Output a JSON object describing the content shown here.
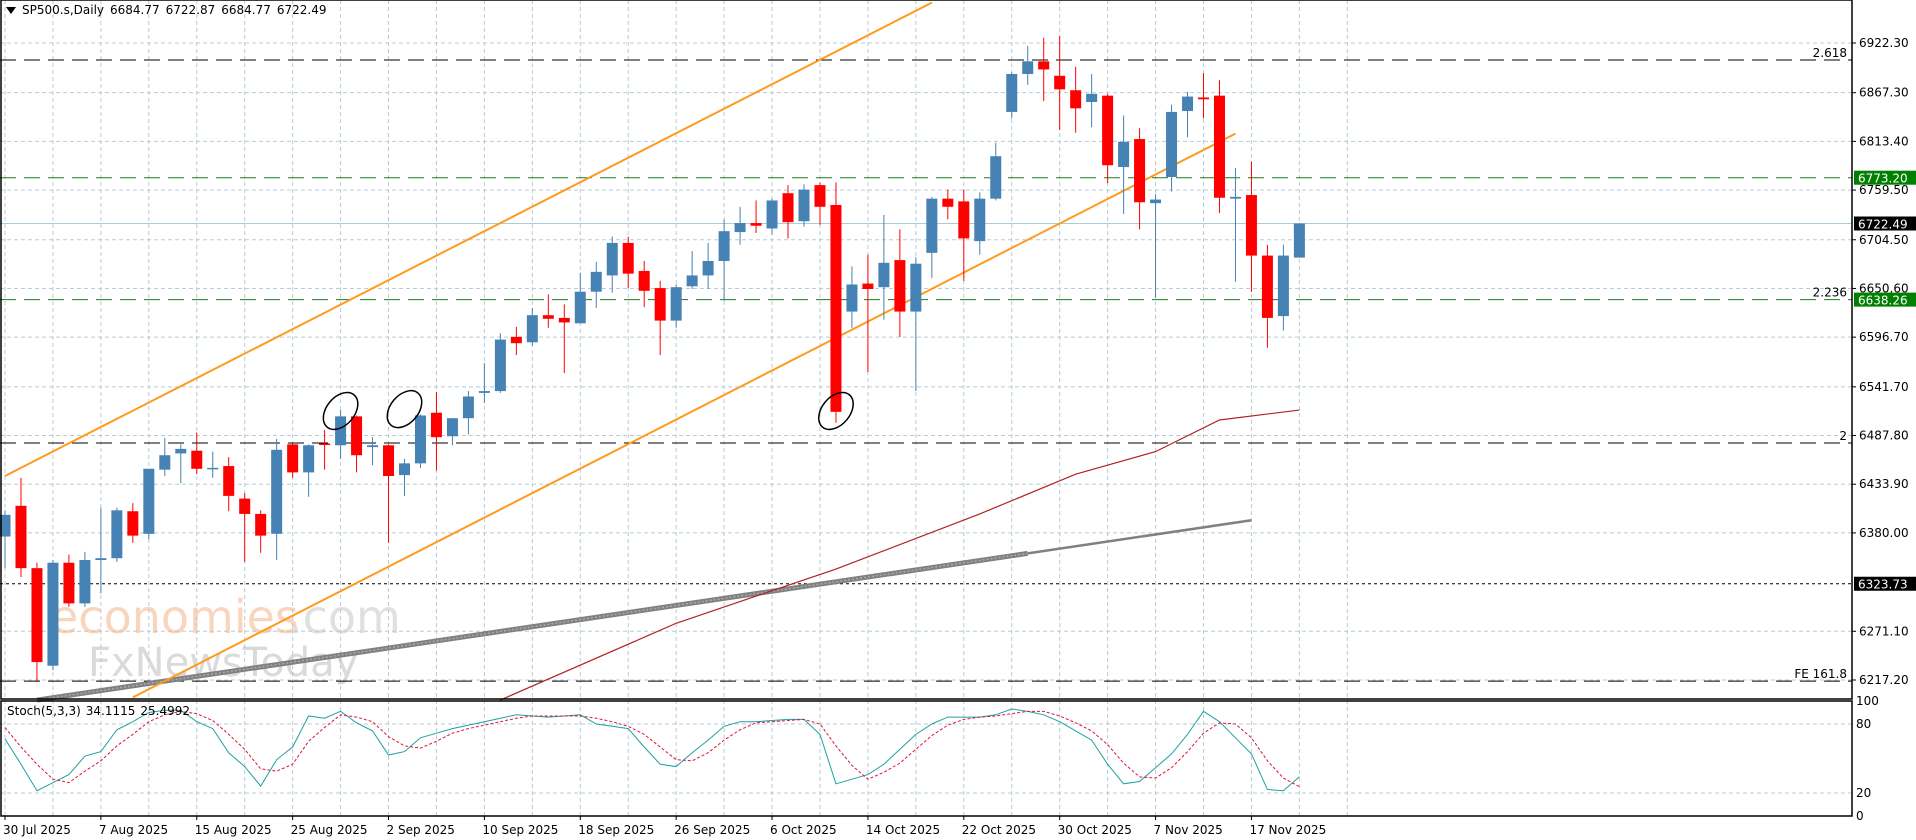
{
  "header": {
    "symbol": "SP500.s,Daily",
    "open": "6684.77",
    "high": "6722.87",
    "low": "6684.77",
    "close": "6722.49"
  },
  "stoch_label": {
    "name": "Stoch(5,3,3)",
    "k": "34.1115",
    "d": "25.4992"
  },
  "watermark": {
    "part1": "economies",
    "part2": ".com",
    "part3": "FxNewsToday"
  },
  "colors": {
    "bull": "#4682B4",
    "bear": "#FF0000",
    "grid": "#b8ccd6",
    "channel": "#FF9A1F",
    "trendline": "#808080",
    "ma": "#B22222",
    "level_green": "#1E7B1E",
    "label_green": "#008000",
    "stoch_k": "#20A0A0",
    "stoch_d": "#DC143C"
  },
  "chart_data": [
    {
      "type": "candlestick",
      "ylim": [
        6195,
        6945
      ],
      "grid": true,
      "y_ticks": [
        "6922.30",
        "6867.30",
        "6813.40",
        "6759.50",
        "6704.50",
        "6650.60",
        "6596.70",
        "6541.70",
        "6487.80",
        "6433.90",
        "6380.00",
        "6271.10",
        "6217.20"
      ],
      "x_ticks": [
        {
          "date": "2025-07-30",
          "label": "30 Jul 2025"
        },
        {
          "date": "2025-08-07",
          "label": "7 Aug 2025"
        },
        {
          "date": "2025-08-15",
          "label": "15 Aug 2025"
        },
        {
          "date": "2025-08-25",
          "label": "25 Aug 2025"
        },
        {
          "date": "2025-09-02",
          "label": "2 Sep 2025"
        },
        {
          "date": "2025-09-10",
          "label": "10 Sep 2025"
        },
        {
          "date": "2025-09-18",
          "label": "18 Sep 2025"
        },
        {
          "date": "2025-09-26",
          "label": "26 Sep 2025"
        },
        {
          "date": "2025-10-06",
          "label": "6 Oct 2025"
        },
        {
          "date": "2025-10-14",
          "label": "14 Oct 2025"
        },
        {
          "date": "2025-10-22",
          "label": "22 Oct 2025"
        },
        {
          "date": "2025-10-30",
          "label": "30 Oct 2025"
        },
        {
          "date": "2025-11-07",
          "label": "7 Nov 2025"
        },
        {
          "date": "2025-11-17",
          "label": "17 Nov 2025"
        }
      ],
      "candles_columns": [
        "date",
        "open",
        "high",
        "low",
        "close"
      ],
      "candles": [
        [
          "2025-07-30",
          6376,
          6405,
          6341,
          6400
        ],
        [
          "2025-07-31",
          6410,
          6441,
          6331,
          6341
        ],
        [
          "2025-08-01",
          6341,
          6347,
          6215,
          6237
        ],
        [
          "2025-08-04",
          6233,
          6350,
          6228,
          6347
        ],
        [
          "2025-08-05",
          6347,
          6356,
          6298,
          6302
        ],
        [
          "2025-08-06",
          6302,
          6359,
          6298,
          6350
        ],
        [
          "2025-08-07",
          6350,
          6408,
          6313,
          6352
        ],
        [
          "2025-08-08",
          6352,
          6408,
          6348,
          6405
        ],
        [
          "2025-08-11",
          6404,
          6413,
          6369,
          6377
        ],
        [
          "2025-08-12",
          6379,
          6451,
          6373,
          6451
        ],
        [
          "2025-08-13",
          6450,
          6485,
          6443,
          6466
        ],
        [
          "2025-08-14",
          6468,
          6478,
          6435,
          6473
        ],
        [
          "2025-08-15",
          6471,
          6491,
          6445,
          6451
        ],
        [
          "2025-08-18",
          6451,
          6470,
          6441,
          6452
        ],
        [
          "2025-08-19",
          6454,
          6464,
          6404,
          6421
        ],
        [
          "2025-08-20",
          6418,
          6424,
          6348,
          6401
        ],
        [
          "2025-08-21",
          6401,
          6405,
          6358,
          6377
        ],
        [
          "2025-08-22",
          6379,
          6484,
          6350,
          6472
        ],
        [
          "2025-08-25",
          6478,
          6479,
          6441,
          6447
        ],
        [
          "2025-08-26",
          6447,
          6478,
          6420,
          6477
        ],
        [
          "2025-08-27",
          6479,
          6494,
          6450,
          6478
        ],
        [
          "2025-08-28",
          6477,
          6516,
          6462,
          6509
        ],
        [
          "2025-08-29",
          6509,
          6510,
          6447,
          6466
        ],
        [
          "2025-09-01",
          6475,
          6486,
          6455,
          6477
        ],
        [
          "2025-09-02",
          6477,
          6478,
          6369,
          6443
        ],
        [
          "2025-09-03",
          6444,
          6462,
          6421,
          6457
        ],
        [
          "2025-09-04",
          6457,
          6511,
          6452,
          6510
        ],
        [
          "2025-09-05",
          6513,
          6536,
          6449,
          6486
        ],
        [
          "2025-09-08",
          6487,
          6507,
          6477,
          6507
        ],
        [
          "2025-09-09",
          6507,
          6537,
          6489,
          6531
        ],
        [
          "2025-09-10",
          6535,
          6568,
          6524,
          6537
        ],
        [
          "2025-09-11",
          6537,
          6601,
          6535,
          6594
        ],
        [
          "2025-09-12",
          6597,
          6608,
          6577,
          6590
        ],
        [
          "2025-09-15",
          6591,
          6629,
          6587,
          6621
        ],
        [
          "2025-09-16",
          6621,
          6644,
          6607,
          6617
        ],
        [
          "2025-09-17",
          6618,
          6633,
          6557,
          6613
        ],
        [
          "2025-09-18",
          6612,
          6668,
          6612,
          6647
        ],
        [
          "2025-09-19",
          6647,
          6680,
          6629,
          6669
        ],
        [
          "2025-09-22",
          6665,
          6708,
          6646,
          6701
        ],
        [
          "2025-09-23",
          6701,
          6708,
          6651,
          6667
        ],
        [
          "2025-09-24",
          6670,
          6681,
          6630,
          6648
        ],
        [
          "2025-09-25",
          6651,
          6659,
          6577,
          6615
        ],
        [
          "2025-09-26",
          6615,
          6655,
          6607,
          6652
        ],
        [
          "2025-09-29",
          6653,
          6692,
          6650,
          6665
        ],
        [
          "2025-09-30",
          6665,
          6701,
          6650,
          6681
        ],
        [
          "2025-10-01",
          6681,
          6727,
          6637,
          6714
        ],
        [
          "2025-10-02",
          6713,
          6741,
          6699,
          6723
        ],
        [
          "2025-10-03",
          6723,
          6748,
          6712,
          6720
        ],
        [
          "2025-10-06",
          6717,
          6750,
          6710,
          6748
        ],
        [
          "2025-10-07",
          6756,
          6765,
          6706,
          6724
        ],
        [
          "2025-10-08",
          6725,
          6766,
          6719,
          6760
        ],
        [
          "2025-10-09",
          6765,
          6768,
          6721,
          6741
        ],
        [
          "2025-10-10",
          6743,
          6768,
          6502,
          6514
        ],
        [
          "2025-10-13",
          6625,
          6675,
          6607,
          6655
        ],
        [
          "2025-10-14",
          6656,
          6688,
          6558,
          6650
        ],
        [
          "2025-10-15",
          6652,
          6732,
          6616,
          6679
        ],
        [
          "2025-10-16",
          6682,
          6716,
          6597,
          6625
        ],
        [
          "2025-10-17",
          6625,
          6685,
          6537,
          6678
        ],
        [
          "2025-10-20",
          6690,
          6752,
          6662,
          6750
        ],
        [
          "2025-10-21",
          6750,
          6760,
          6727,
          6741
        ],
        [
          "2025-10-22",
          6747,
          6760,
          6659,
          6706
        ],
        [
          "2025-10-23",
          6703,
          6757,
          6688,
          6750
        ],
        [
          "2025-10-24",
          6750,
          6812,
          6748,
          6797
        ],
        [
          "2025-10-27",
          6846,
          6890,
          6839,
          6888
        ],
        [
          "2025-10-28",
          6888,
          6919,
          6876,
          6902
        ],
        [
          "2025-10-29",
          6902,
          6928,
          6858,
          6893
        ],
        [
          "2025-10-30",
          6886,
          6930,
          6826,
          6871
        ],
        [
          "2025-10-31",
          6870,
          6896,
          6823,
          6850
        ],
        [
          "2025-11-03",
          6857,
          6888,
          6829,
          6866
        ],
        [
          "2025-11-04",
          6864,
          6866,
          6767,
          6787
        ],
        [
          "2025-11-05",
          6785,
          6842,
          6733,
          6813
        ],
        [
          "2025-11-06",
          6816,
          6828,
          6716,
          6746
        ],
        [
          "2025-11-07",
          6745,
          6755,
          6640,
          6749
        ],
        [
          "2025-11-10",
          6774,
          6854,
          6758,
          6846
        ],
        [
          "2025-11-11",
          6847,
          6868,
          6818,
          6863
        ],
        [
          "2025-11-12",
          6862,
          6889,
          6839,
          6860
        ],
        [
          "2025-11-13",
          6864,
          6881,
          6734,
          6751
        ],
        [
          "2025-11-14",
          6750,
          6784,
          6658,
          6752
        ],
        [
          "2025-11-17",
          6754,
          6791,
          6647,
          6687
        ],
        [
          "2025-11-18",
          6687,
          6699,
          6585,
          6618
        ],
        [
          "2025-11-19",
          6620,
          6699,
          6604,
          6687
        ],
        [
          "2025-11-20",
          6684.77,
          6722.87,
          6684.77,
          6722.49
        ]
      ],
      "levels": [
        {
          "price": 6903.5,
          "style": "dash",
          "color": "#000000",
          "label": "2.618"
        },
        {
          "price": 6773.2,
          "style": "dash",
          "color": "#1E7B1E",
          "axis_label": "6773.20",
          "axis_bg": "#008000"
        },
        {
          "price": 6722.49,
          "style": "solid",
          "color": "#A8CCD8",
          "axis_label": "6722.49",
          "axis_bg": "#000000"
        },
        {
          "price": 6638.26,
          "style": "dash",
          "color": "#1E7B1E",
          "label": "2.236",
          "axis_label": "6638.26",
          "axis_bg": "#008000"
        },
        {
          "price": 6479.5,
          "style": "dash",
          "color": "#000000",
          "label": "2"
        },
        {
          "price": 6323.73,
          "style": "dot",
          "color": "#000000",
          "axis_label": "6323.73",
          "axis_bg": "#000000"
        },
        {
          "price": 6216,
          "style": "dash",
          "color": "#000000",
          "label": "FE 161.8"
        }
      ],
      "channel_lines": [
        {
          "from": [
            "2025-07-30",
            6443
          ],
          "to": [
            "2025-10-20",
            6967
          ]
        },
        {
          "from": [
            "2025-08-11",
            6198
          ],
          "to": [
            "2025-11-14",
            6822
          ]
        }
      ],
      "trendline": {
        "from": [
          "2025-08-01",
          6195
        ],
        "to": [
          "2025-11-17",
          6394
        ],
        "thick_until": "2025-10-28"
      },
      "moving_average": [
        [
          "2025-09-11",
          6195
        ],
        [
          "2025-09-26",
          6280
        ],
        [
          "2025-10-10",
          6340
        ],
        [
          "2025-10-23",
          6401
        ],
        [
          "2025-10-31",
          6445
        ],
        [
          "2025-11-07",
          6470
        ],
        [
          "2025-11-13",
          6505
        ],
        [
          "2025-11-20",
          6516
        ]
      ],
      "ellipses": [
        {
          "date": "2025-08-28",
          "price": 6515
        },
        {
          "date": "2025-09-03",
          "price": 6517
        },
        {
          "date": "2025-10-10",
          "price": 6515
        }
      ]
    },
    {
      "type": "line",
      "ylim": [
        0,
        100
      ],
      "y_ticks": [
        "100",
        "80",
        "20",
        "0"
      ],
      "levels": [
        80,
        20
      ],
      "k": [
        67,
        45,
        22,
        29,
        36,
        52,
        56,
        75,
        82,
        90,
        92,
        92,
        82,
        76,
        55,
        43,
        26,
        49,
        60,
        87,
        85,
        91,
        81,
        74,
        53,
        56,
        68,
        72,
        76,
        79,
        82,
        85,
        88,
        87,
        86,
        87,
        88,
        80,
        78,
        76,
        60,
        45,
        43,
        55,
        66,
        78,
        82,
        82,
        83,
        84,
        84,
        71,
        28,
        32,
        36,
        45,
        58,
        71,
        80,
        86,
        86,
        86,
        88,
        93,
        91,
        88,
        82,
        74,
        66,
        45,
        28,
        30,
        42,
        54,
        71,
        91,
        82,
        68,
        54,
        23,
        22,
        34.1115
      ],
      "d": [
        77,
        60,
        45,
        32,
        29,
        39,
        48,
        61,
        71,
        82,
        88,
        91,
        89,
        83,
        71,
        58,
        41,
        39,
        45,
        65,
        77,
        88,
        86,
        82,
        69,
        61,
        59,
        65,
        72,
        76,
        79,
        82,
        85,
        87,
        87,
        87,
        87,
        85,
        82,
        78,
        71,
        60,
        49,
        48,
        55,
        66,
        75,
        81,
        82,
        83,
        84,
        80,
        61,
        44,
        32,
        38,
        46,
        58,
        70,
        79,
        84,
        86,
        87,
        89,
        91,
        91,
        87,
        81,
        74,
        62,
        46,
        34,
        33,
        42,
        56,
        72,
        81,
        80,
        68,
        48,
        33,
        25.4992
      ]
    }
  ]
}
